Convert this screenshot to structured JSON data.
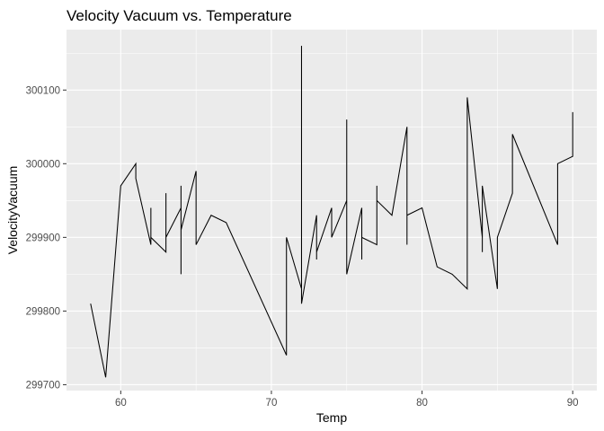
{
  "chart_data": {
    "type": "line",
    "title": "Velocity Vacuum vs. Temperature",
    "xlabel": "Temp",
    "ylabel": "VelocityVacuum",
    "xlim": [
      56.4,
      91.6
    ],
    "ylim": [
      299692,
      300182
    ],
    "x_ticks": [
      60,
      70,
      80,
      90
    ],
    "y_ticks": [
      299700,
      299800,
      299900,
      300000,
      300100
    ],
    "grid": true,
    "line_color": "#000000",
    "panel_background": "#ebebeb",
    "grid_color": "#ffffff",
    "series": [
      {
        "x": [
          58,
          59,
          60,
          61,
          61,
          62,
          62,
          62,
          63,
          63,
          63,
          64,
          64,
          64,
          64,
          65,
          65,
          66,
          67,
          71,
          71,
          72,
          72,
          72,
          73,
          73,
          73,
          74,
          74,
          75,
          75,
          75,
          76,
          76,
          76,
          77,
          77,
          77,
          78,
          79,
          79,
          79,
          80,
          81,
          82,
          83,
          83,
          83,
          84,
          84,
          84,
          85,
          85,
          86,
          86,
          86,
          89,
          89,
          90,
          90
        ],
        "y": [
          299810,
          299710,
          299970,
          300000,
          299980,
          299890,
          299940,
          299900,
          299880,
          299960,
          299900,
          299940,
          299850,
          299970,
          299910,
          299990,
          299890,
          299930,
          299920,
          299740,
          299900,
          299830,
          300160,
          299810,
          299930,
          299870,
          299880,
          299940,
          299900,
          299950,
          300060,
          299850,
          299940,
          299870,
          299900,
          299890,
          299970,
          299950,
          299930,
          300050,
          299890,
          299930,
          299940,
          299860,
          299850,
          299830,
          300030,
          300090,
          299900,
          299880,
          299970,
          299830,
          299900,
          299960,
          299980,
          300040,
          299890,
          300000,
          300010,
          300070
        ]
      }
    ]
  }
}
